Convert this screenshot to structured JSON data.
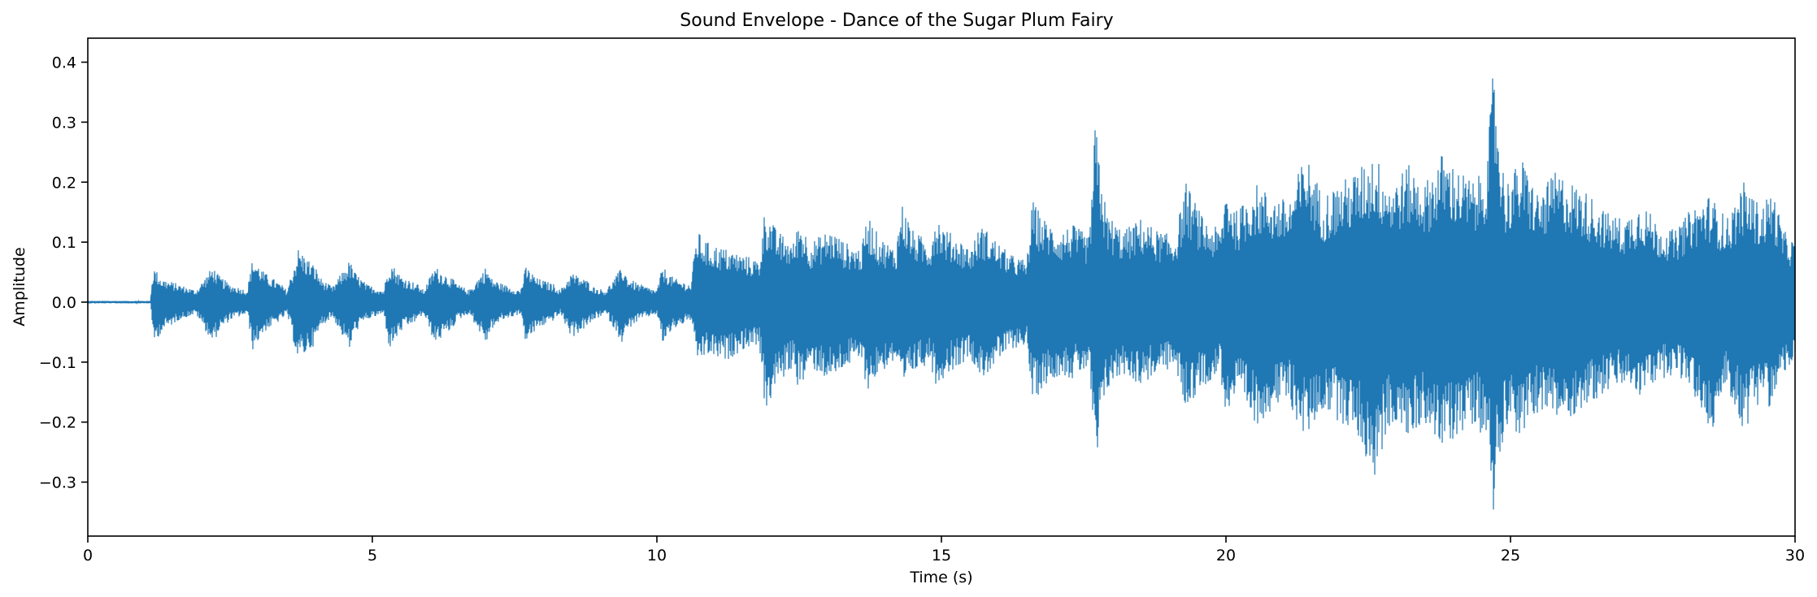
{
  "chart_data": {
    "type": "line",
    "title": "Sound Envelope - Dance of the Sugar Plum Fairy",
    "xlabel": "Time (s)",
    "ylabel": "Amplitude",
    "xlim": [
      0,
      30
    ],
    "ylim": [
      -0.39,
      0.44
    ],
    "xticks": [
      0,
      5,
      10,
      15,
      20,
      25,
      30
    ],
    "xtick_labels": [
      "0",
      "5",
      "10",
      "15",
      "20",
      "25",
      "30"
    ],
    "yticks": [
      -0.3,
      -0.2,
      -0.1,
      0.0,
      0.1,
      0.2,
      0.3,
      0.4
    ],
    "ytick_labels": [
      "−0.3",
      "−0.2",
      "−0.1",
      "0.0",
      "0.1",
      "0.2",
      "0.3",
      "0.4"
    ],
    "grid": false,
    "legend": "none",
    "series": [
      {
        "color": "#1f77b4",
        "description_points": "upper and lower envelope of waveform (time in s, amplitude)",
        "x": [
          0.0,
          1.1,
          1.15,
          1.3,
          1.6,
          1.9,
          2.2,
          2.3,
          2.5,
          2.8,
          2.9,
          3.1,
          3.4,
          3.5,
          3.7,
          4.0,
          4.1,
          4.3,
          4.6,
          4.7,
          4.9,
          5.2,
          5.3,
          5.5,
          5.8,
          5.9,
          6.1,
          6.4,
          6.5,
          6.7,
          7.0,
          7.1,
          7.3,
          7.6,
          7.7,
          7.9,
          8.2,
          8.3,
          8.5,
          8.8,
          8.9,
          9.1,
          9.4,
          9.5,
          9.7,
          10.0,
          10.1,
          10.3,
          10.6,
          10.7,
          10.9,
          11.2,
          11.5,
          11.8,
          11.9,
          12.1,
          12.4,
          12.5,
          12.7,
          13.0,
          13.1,
          13.3,
          13.6,
          13.7,
          13.9,
          14.2,
          14.3,
          14.5,
          14.8,
          14.9,
          15.1,
          15.4,
          15.5,
          15.7,
          16.0,
          16.2,
          16.5,
          16.6,
          16.8,
          17.1,
          17.3,
          17.6,
          17.7,
          17.9,
          18.2,
          18.5,
          18.8,
          19.1,
          19.3,
          19.6,
          19.9,
          20.0,
          20.2,
          20.5,
          20.8,
          21.1,
          21.4,
          21.7,
          22.0,
          22.3,
          22.6,
          22.9,
          23.2,
          23.5,
          23.8,
          24.1,
          24.4,
          24.6,
          24.7,
          24.8,
          24.9,
          25.2,
          25.5,
          25.8,
          26.1,
          26.4,
          26.7,
          27.0,
          27.3,
          27.6,
          27.9,
          28.2,
          28.5,
          28.8,
          29.1,
          29.4,
          29.6,
          29.8,
          30.0
        ],
        "upper": [
          0.002,
          0.002,
          0.06,
          0.04,
          0.03,
          0.02,
          0.06,
          0.045,
          0.03,
          0.02,
          0.075,
          0.05,
          0.03,
          0.02,
          0.09,
          0.06,
          0.04,
          0.025,
          0.07,
          0.05,
          0.03,
          0.02,
          0.07,
          0.045,
          0.03,
          0.02,
          0.06,
          0.04,
          0.03,
          0.02,
          0.06,
          0.04,
          0.03,
          0.02,
          0.06,
          0.04,
          0.03,
          0.02,
          0.05,
          0.035,
          0.025,
          0.02,
          0.06,
          0.04,
          0.03,
          0.02,
          0.06,
          0.04,
          0.03,
          0.12,
          0.1,
          0.09,
          0.08,
          0.07,
          0.16,
          0.12,
          0.1,
          0.14,
          0.1,
          0.12,
          0.12,
          0.1,
          0.09,
          0.15,
          0.11,
          0.09,
          0.17,
          0.12,
          0.1,
          0.15,
          0.12,
          0.1,
          0.09,
          0.13,
          0.1,
          0.08,
          0.07,
          0.17,
          0.14,
          0.12,
          0.13,
          0.11,
          0.3,
          0.15,
          0.12,
          0.14,
          0.12,
          0.11,
          0.2,
          0.14,
          0.12,
          0.2,
          0.15,
          0.2,
          0.18,
          0.17,
          0.25,
          0.18,
          0.2,
          0.22,
          0.25,
          0.2,
          0.23,
          0.2,
          0.25,
          0.22,
          0.2,
          0.25,
          0.4,
          0.3,
          0.2,
          0.24,
          0.18,
          0.22,
          0.2,
          0.18,
          0.15,
          0.14,
          0.17,
          0.13,
          0.12,
          0.16,
          0.18,
          0.14,
          0.2,
          0.16,
          0.19,
          0.12,
          0.1
        ],
        "lower": [
          -0.002,
          -0.002,
          -0.07,
          -0.05,
          -0.03,
          -0.02,
          -0.07,
          -0.05,
          -0.03,
          -0.02,
          -0.08,
          -0.05,
          -0.03,
          -0.02,
          -0.1,
          -0.07,
          -0.04,
          -0.025,
          -0.08,
          -0.05,
          -0.03,
          -0.02,
          -0.08,
          -0.05,
          -0.03,
          -0.02,
          -0.07,
          -0.045,
          -0.03,
          -0.02,
          -0.07,
          -0.045,
          -0.03,
          -0.02,
          -0.07,
          -0.045,
          -0.03,
          -0.02,
          -0.06,
          -0.04,
          -0.03,
          -0.02,
          -0.07,
          -0.045,
          -0.03,
          -0.02,
          -0.07,
          -0.045,
          -0.03,
          -0.1,
          -0.09,
          -0.1,
          -0.08,
          -0.07,
          -0.19,
          -0.14,
          -0.11,
          -0.15,
          -0.11,
          -0.13,
          -0.13,
          -0.11,
          -0.1,
          -0.15,
          -0.12,
          -0.1,
          -0.16,
          -0.12,
          -0.1,
          -0.14,
          -0.12,
          -0.1,
          -0.09,
          -0.13,
          -0.1,
          -0.08,
          -0.07,
          -0.17,
          -0.14,
          -0.12,
          -0.13,
          -0.11,
          -0.3,
          -0.15,
          -0.12,
          -0.14,
          -0.12,
          -0.11,
          -0.18,
          -0.14,
          -0.12,
          -0.19,
          -0.16,
          -0.21,
          -0.18,
          -0.17,
          -0.23,
          -0.18,
          -0.2,
          -0.22,
          -0.3,
          -0.2,
          -0.23,
          -0.2,
          -0.25,
          -0.22,
          -0.2,
          -0.25,
          -0.35,
          -0.28,
          -0.2,
          -0.23,
          -0.18,
          -0.2,
          -0.19,
          -0.17,
          -0.15,
          -0.14,
          -0.16,
          -0.13,
          -0.12,
          -0.15,
          -0.23,
          -0.14,
          -0.22,
          -0.16,
          -0.18,
          -0.12,
          -0.1
        ]
      }
    ]
  }
}
